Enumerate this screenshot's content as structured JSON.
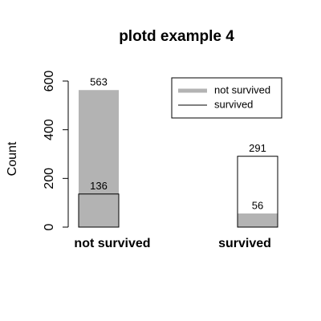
{
  "chart_data": {
    "type": "bar",
    "title": "plotd example 4",
    "y_label": "Count",
    "categories": [
      "not survived",
      "survived"
    ],
    "series": [
      {
        "name": "not survived",
        "color": "#b3b3b3",
        "values": [
          563,
          56
        ]
      },
      {
        "name": "survived",
        "color": "#000000",
        "values": [
          136,
          291
        ]
      }
    ],
    "ylim": [
      0,
      600
    ],
    "yticks": [
      0,
      200,
      400,
      600
    ],
    "legend": "top-right"
  }
}
